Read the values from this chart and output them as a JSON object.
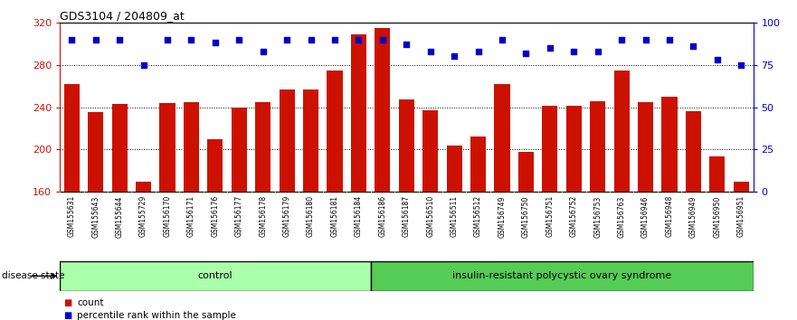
{
  "title": "GDS3104 / 204809_at",
  "samples": [
    "GSM155631",
    "GSM155643",
    "GSM155644",
    "GSM155729",
    "GSM156170",
    "GSM156171",
    "GSM156176",
    "GSM156177",
    "GSM156178",
    "GSM156179",
    "GSM156180",
    "GSM156181",
    "GSM156184",
    "GSM156186",
    "GSM156187",
    "GSM156510",
    "GSM156511",
    "GSM156512",
    "GSM156749",
    "GSM156750",
    "GSM156751",
    "GSM156752",
    "GSM156753",
    "GSM156763",
    "GSM156946",
    "GSM156948",
    "GSM156949",
    "GSM156950",
    "GSM156951"
  ],
  "counts": [
    262,
    235,
    243,
    170,
    244,
    245,
    210,
    240,
    245,
    257,
    257,
    275,
    309,
    315,
    247,
    237,
    204,
    212,
    262,
    198,
    241,
    241,
    246,
    275,
    245,
    250,
    236,
    194,
    170
  ],
  "percentile_ranks": [
    90,
    90,
    90,
    75,
    90,
    90,
    88,
    90,
    83,
    90,
    90,
    90,
    90,
    90,
    87,
    83,
    80,
    83,
    90,
    82,
    85,
    83,
    83,
    90,
    90,
    90,
    86,
    78,
    75
  ],
  "control_count": 13,
  "disease_count": 16,
  "ylim_left": [
    160,
    320
  ],
  "ylim_right": [
    0,
    100
  ],
  "yticks_left": [
    160,
    200,
    240,
    280,
    320
  ],
  "yticks_right": [
    0,
    25,
    50,
    75,
    100
  ],
  "bar_color": "#cc1100",
  "dot_color": "#0000cc",
  "control_label": "control",
  "disease_label": "insulin-resistant polycystic ovary syndrome",
  "control_bg": "#aaffaa",
  "disease_bg": "#55cc55",
  "legend_count_label": "count",
  "legend_percentile_label": "percentile rank within the sample",
  "axis_bg": "#ffffff",
  "sample_label_bg": "#cccccc",
  "grid_yticks": [
    200,
    240,
    280
  ]
}
